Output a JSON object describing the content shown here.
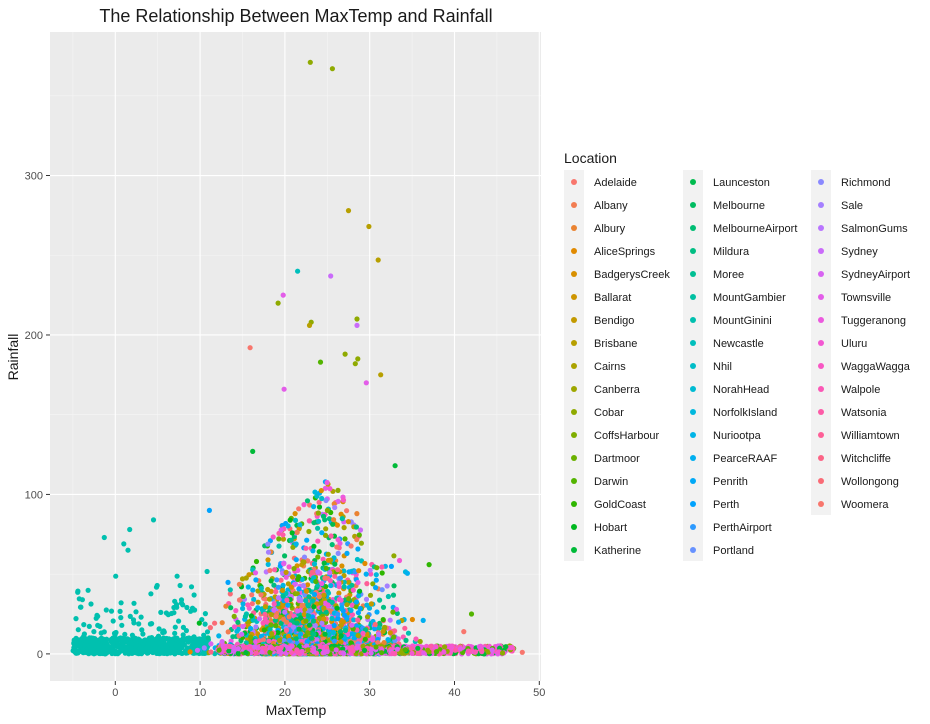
{
  "chart_data": {
    "type": "scatter",
    "title": "The Relationship Between MaxTemp and Rainfall",
    "xlabel": "MaxTemp",
    "ylabel": "Rainfall",
    "xlim": [
      -7.7,
      50.2
    ],
    "ylim": [
      -17,
      390
    ],
    "x_ticks": [
      0,
      10,
      20,
      30,
      40,
      50
    ],
    "y_ticks": [
      0,
      100,
      200,
      300
    ],
    "grid": true,
    "legend_title": "Location",
    "legend_position": "right",
    "series": [
      {
        "name": "Adelaide",
        "color": "#F8766D"
      },
      {
        "name": "Albany",
        "color": "#F27D52"
      },
      {
        "name": "Albury",
        "color": "#EA8331"
      },
      {
        "name": "AliceSprings",
        "color": "#E18A00"
      },
      {
        "name": "BadgerysCreek",
        "color": "#D89000"
      },
      {
        "name": "Ballarat",
        "color": "#CE9500"
      },
      {
        "name": "Bendigo",
        "color": "#C39A00"
      },
      {
        "name": "Brisbane",
        "color": "#B79F00"
      },
      {
        "name": "Cairns",
        "color": "#ABA300"
      },
      {
        "name": "Canberra",
        "color": "#9EA700"
      },
      {
        "name": "Cobar",
        "color": "#8FAA00"
      },
      {
        "name": "CoffsHarbour",
        "color": "#7FAE00"
      },
      {
        "name": "Dartmoor",
        "color": "#6BB100"
      },
      {
        "name": "Darwin",
        "color": "#53B400"
      },
      {
        "name": "GoldCoast",
        "color": "#2FB600"
      },
      {
        "name": "Hobart",
        "color": "#00B81F"
      },
      {
        "name": "Katherine",
        "color": "#00BA38"
      },
      {
        "name": "Launceston",
        "color": "#00BB4E"
      },
      {
        "name": "Melbourne",
        "color": "#00BC61"
      },
      {
        "name": "MelbourneAirport",
        "color": "#00BD73"
      },
      {
        "name": "Mildura",
        "color": "#00BE83"
      },
      {
        "name": "Moree",
        "color": "#00BF93"
      },
      {
        "name": "MountGambier",
        "color": "#00C0A2"
      },
      {
        "name": "MountGinini",
        "color": "#00C0AF"
      },
      {
        "name": "Newcastle",
        "color": "#00BFBC"
      },
      {
        "name": "Nhil",
        "color": "#00BDC8"
      },
      {
        "name": "NorahHead",
        "color": "#00BBD3"
      },
      {
        "name": "NorfolkIsland",
        "color": "#00B8DE"
      },
      {
        "name": "Nuriootpa",
        "color": "#00B4E7"
      },
      {
        "name": "PearceRAAF",
        "color": "#00AFF0"
      },
      {
        "name": "Penrith",
        "color": "#00A9F7"
      },
      {
        "name": "Perth",
        "color": "#00A2FD"
      },
      {
        "name": "PerthAirport",
        "color": "#2D9AFF"
      },
      {
        "name": "Portland",
        "color": "#6792FF"
      },
      {
        "name": "Richmond",
        "color": "#8A89FF"
      },
      {
        "name": "Sale",
        "color": "#A57FFF"
      },
      {
        "name": "SalmonGums",
        "color": "#B975FF"
      },
      {
        "name": "Sydney",
        "color": "#CA6BFA"
      },
      {
        "name": "SydneyAirport",
        "color": "#D863F2"
      },
      {
        "name": "Townsville",
        "color": "#E35DE9"
      },
      {
        "name": "Tuggeranong",
        "color": "#EC59DE"
      },
      {
        "name": "Uluru",
        "color": "#F357D2"
      },
      {
        "name": "WaggaWagga",
        "color": "#F857C4"
      },
      {
        "name": "Walpole",
        "color": "#FB58B6"
      },
      {
        "name": "Watsonia",
        "color": "#FD5BA7"
      },
      {
        "name": "Williamtown",
        "color": "#FE5F97"
      },
      {
        "name": "Witchcliffe",
        "color": "#FC6486"
      },
      {
        "name": "Wollongong",
        "color": "#FA6B76"
      },
      {
        "name": "Woomera",
        "color": "#F8766D"
      }
    ],
    "highlight_points": [
      {
        "series": "Cobar",
        "x": 23.0,
        "y": 371
      },
      {
        "series": "Cobar",
        "x": 25.6,
        "y": 367
      },
      {
        "series": "Brisbane",
        "x": 27.5,
        "y": 278
      },
      {
        "series": "Brisbane",
        "x": 29.9,
        "y": 268
      },
      {
        "series": "Brisbane",
        "x": 31.0,
        "y": 247
      },
      {
        "series": "Newcastle",
        "x": 21.5,
        "y": 240
      },
      {
        "series": "Sydney",
        "x": 25.4,
        "y": 237
      },
      {
        "series": "Townsville",
        "x": 19.8,
        "y": 225
      },
      {
        "series": "Cobar",
        "x": 19.2,
        "y": 220
      },
      {
        "series": "Cobar",
        "x": 28.5,
        "y": 210
      },
      {
        "series": "Sydney",
        "x": 28.5,
        "y": 206
      },
      {
        "series": "Cobar",
        "x": 23.1,
        "y": 208
      },
      {
        "series": "Brisbane",
        "x": 22.9,
        "y": 206
      },
      {
        "series": "Woomera",
        "x": 15.9,
        "y": 192
      },
      {
        "series": "Cobar",
        "x": 27.1,
        "y": 188
      },
      {
        "series": "Cobar",
        "x": 28.6,
        "y": 185
      },
      {
        "series": "Darwin",
        "x": 24.2,
        "y": 183
      },
      {
        "series": "Cobar",
        "x": 28.3,
        "y": 182
      },
      {
        "series": "Brisbane",
        "x": 31.3,
        "y": 175
      },
      {
        "series": "Townsville",
        "x": 29.6,
        "y": 170
      },
      {
        "series": "Townsville",
        "x": 19.9,
        "y": 166
      },
      {
        "series": "Katherine",
        "x": 16.2,
        "y": 127
      },
      {
        "series": "Perth",
        "x": 11.1,
        "y": 90
      },
      {
        "series": "MountGinini",
        "x": 4.5,
        "y": 84
      },
      {
        "series": "MountGinini",
        "x": 1.7,
        "y": 78
      },
      {
        "series": "MountGinini",
        "x": -1.3,
        "y": 73
      },
      {
        "series": "MountGinini",
        "x": 1.0,
        "y": 69
      },
      {
        "series": "MountGinini",
        "x": 1.5,
        "y": 65
      },
      {
        "series": "GoldCoast",
        "x": 37.0,
        "y": 56
      },
      {
        "series": "Katherine",
        "x": 33.0,
        "y": 118
      },
      {
        "series": "Darwin",
        "x": 42.0,
        "y": 25
      },
      {
        "series": "Adelaide",
        "x": 41.1,
        "y": 14
      },
      {
        "series": "Adelaide",
        "x": 48.0,
        "y": 1
      }
    ],
    "note": "Thousands of additional daily observations densely cover roughly MaxTemp -5 to 47, Rainfall 0 to ~120, concentrated near zero rainfall."
  }
}
